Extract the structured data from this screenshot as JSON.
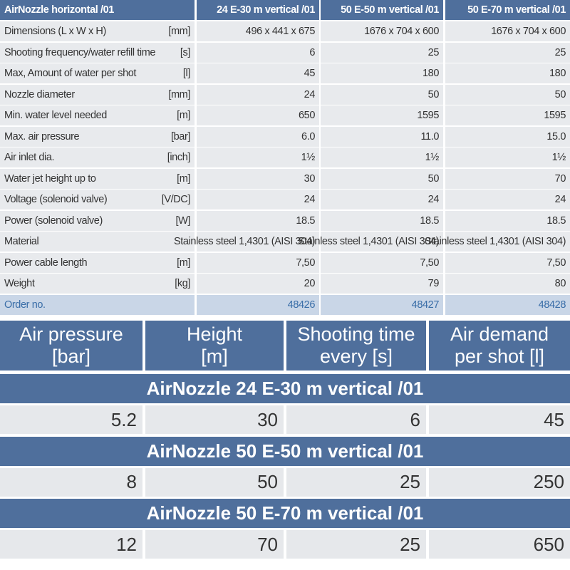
{
  "top_table": {
    "header": [
      "AirNozzle horizontal /01",
      "24 E-30 m vertical /01",
      "50 E-50 m vertical /01",
      "50 E-70 m vertical /01"
    ],
    "rows": [
      {
        "label": "Dimensions (L x W x H)",
        "unit": "[mm]",
        "values": [
          "496 x 441 x 675",
          "1676 x 704 x 600",
          "1676 x 704 x 600"
        ]
      },
      {
        "label": "Shooting frequency/water refill time",
        "unit": "[s]",
        "values": [
          "6",
          "25",
          "25"
        ]
      },
      {
        "label": "Max, Amount of water per shot",
        "unit": "[l]",
        "values": [
          "45",
          "180",
          "180"
        ]
      },
      {
        "label": "Nozzle diameter",
        "unit": "[mm]",
        "values": [
          "24",
          "50",
          "50"
        ]
      },
      {
        "label": "Min. water level needed",
        "unit": "[m]",
        "values": [
          "650",
          "1595",
          "1595"
        ]
      },
      {
        "label": "Max. air pressure",
        "unit": "[bar]",
        "values": [
          "6.0",
          "11.0",
          "15.0"
        ]
      },
      {
        "label": "Air inlet dia.",
        "unit": "[inch]",
        "values": [
          "1½",
          "1½",
          "1½"
        ]
      },
      {
        "label": "Water jet height up to",
        "unit": "[m]",
        "values": [
          "30",
          "50",
          "70"
        ]
      },
      {
        "label": "Voltage (solenoid valve)",
        "unit": "[V/DC]",
        "values": [
          "24",
          "24",
          "24"
        ]
      },
      {
        "label": "Power (solenoid valve)",
        "unit": "[W]",
        "values": [
          "18.5",
          "18.5",
          "18.5"
        ]
      },
      {
        "label": "Material",
        "values": [
          "Stainless steel 1,4301 (AISI 304)",
          "Stainless steel 1,4301 (AISI 304)",
          "Stainless steel 1,4301 (AISI 304)"
        ]
      },
      {
        "label": "Power cable length",
        "unit": "[m]",
        "values": [
          "7,50",
          "7,50",
          "7,50"
        ]
      },
      {
        "label": "Weight",
        "unit": "[kg]",
        "values": [
          "20",
          "79",
          "80"
        ]
      },
      {
        "label": "Order no.",
        "values": [
          "48426",
          "48427",
          "48428"
        ]
      }
    ]
  },
  "bottom_table": {
    "header": [
      [
        "Air pressure",
        "[bar]"
      ],
      [
        "Height",
        "[m]"
      ],
      [
        "Shooting time",
        "every [s]"
      ],
      [
        "Air demand",
        "per shot [l]"
      ]
    ],
    "groups": [
      {
        "title": "AirNozzle 24 E-30 m vertical /01",
        "values": [
          "5.2",
          "30",
          "6",
          "45"
        ]
      },
      {
        "title": "AirNozzle 50 E-50 m vertical /01",
        "values": [
          "8",
          "50",
          "25",
          "250"
        ]
      },
      {
        "title": "AirNozzle 50 E-70 m vertical /01",
        "values": [
          "12",
          "70",
          "25",
          "650"
        ]
      }
    ]
  }
}
